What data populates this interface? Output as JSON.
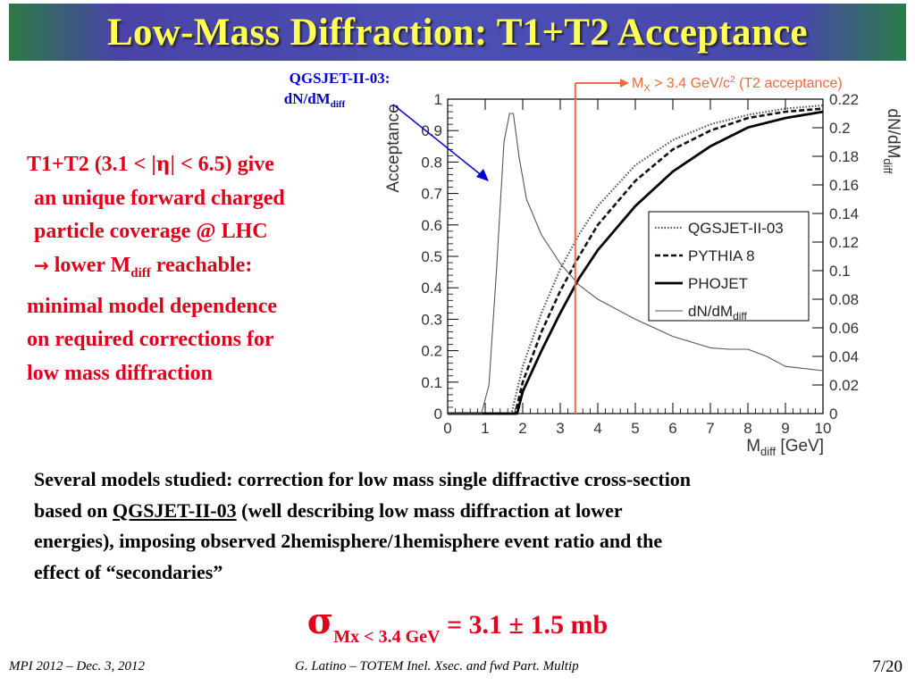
{
  "slide": {
    "title": "Low-Mass Diffraction: T1+T2 Acceptance",
    "left_text": {
      "l1_pre": "T1+T2 (3.1 < |",
      "l1_eta": "η",
      "l1_post": "| < 6.5) give",
      "l2": "an unique forward charged",
      "l3": "particle coverage @ LHC",
      "l4_arrow": "→",
      "l4_pre": " lower M",
      "l4_sub": "diff",
      "l4_post": " reachable:",
      "l5": "minimal model dependence",
      "l6": "on required corrections for",
      "l7": "low mass diffraction"
    },
    "description": {
      "l1": "Several models studied: correction for low mass single diffractive cross-section",
      "l2_pre": "based on ",
      "l2_link": "QGSJET-II-03",
      "l2_post": " (well describing low mass diffraction at lower",
      "l3": "energies), imposing observed 2hemisphere/1hemisphere event ratio and the",
      "l4": "effect of “secondaries”"
    },
    "result": {
      "sigma": "σ",
      "sub": "Mx < 3.4 GeV",
      "value": " = 3.1 ± 1.5 mb"
    },
    "footer": {
      "left": "MPI 2012 – Dec. 3, 2012",
      "middle": "G. Latino – TOTEM  Inel. Xsec. and fwd Part. Multip",
      "page": "7/20"
    }
  },
  "colors": {
    "title_bg": "#4b4fb3",
    "title_text": "#ffff55",
    "accent_red": "#e0001b",
    "annotation_blue": "#0000cc",
    "cut_line": "#f06a3c"
  },
  "chart_data": {
    "type": "line",
    "xlabel_main": "M",
    "xlabel_sub": "diff",
    "xlabel_unit": "[GeV]",
    "ylabel_left": "Acceptance",
    "ylabel_right_main": "dN/dM",
    "ylabel_right_sub": "diff",
    "xlim": [
      0,
      10
    ],
    "ylim_left": [
      0,
      1
    ],
    "ylim_right": [
      0,
      0.22
    ],
    "x_ticks": [
      0,
      1,
      2,
      3,
      4,
      5,
      6,
      7,
      8,
      9,
      10
    ],
    "y_ticks_left": [
      0,
      0.1,
      0.2,
      0.3,
      0.4,
      0.5,
      0.6,
      0.7,
      0.8,
      0.9,
      1
    ],
    "y_ticks_right": [
      0,
      0.02,
      0.04,
      0.06,
      0.08,
      0.1,
      0.12,
      0.14,
      0.16,
      0.18,
      0.2,
      0.22
    ],
    "legend": {
      "position": "center-right",
      "entries": [
        {
          "label": "QGSJET-II-03",
          "style": "dotted"
        },
        {
          "label": "PYTHIA 8",
          "style": "dashed"
        },
        {
          "label": "PHOJET",
          "style": "solid"
        },
        {
          "label_main": "dN/dM",
          "label_sub": "diff",
          "style": "thin"
        }
      ]
    },
    "annotation_left": {
      "line1": "QGSJET-II-03:",
      "line2_main": "dN/dM",
      "line2_sub": "diff"
    },
    "annotation_right": {
      "pre": "M",
      "sub": "X",
      "mid": " > 3.4 GeV/c",
      "sup": "2",
      "post": " (T2 acceptance)"
    },
    "cut_x": 3.4,
    "series": [
      {
        "name": "QGSJET-II-03",
        "axis": "left",
        "style": "dotted",
        "x": [
          0,
          1.7,
          2,
          2.5,
          3,
          3.5,
          4,
          5,
          6,
          7,
          8,
          9,
          10
        ],
        "y": [
          0,
          0,
          0.15,
          0.32,
          0.46,
          0.57,
          0.66,
          0.79,
          0.87,
          0.92,
          0.95,
          0.97,
          0.98
        ]
      },
      {
        "name": "PYTHIA 8",
        "axis": "left",
        "style": "dashed",
        "x": [
          0,
          1.8,
          2,
          2.5,
          3,
          3.5,
          4,
          5,
          6,
          7,
          8,
          9,
          10
        ],
        "y": [
          0,
          0,
          0.1,
          0.26,
          0.39,
          0.5,
          0.6,
          0.74,
          0.84,
          0.9,
          0.94,
          0.96,
          0.97
        ]
      },
      {
        "name": "PHOJET",
        "axis": "left",
        "style": "solid",
        "x": [
          0,
          1.85,
          2,
          2.5,
          3,
          3.5,
          4,
          5,
          6,
          7,
          8,
          9,
          10
        ],
        "y": [
          0,
          0,
          0.07,
          0.2,
          0.32,
          0.43,
          0.52,
          0.66,
          0.77,
          0.85,
          0.91,
          0.94,
          0.96
        ]
      },
      {
        "name": "dN/dMdiff",
        "axis": "right",
        "style": "thin",
        "x": [
          0,
          0.9,
          1.1,
          1.3,
          1.5,
          1.65,
          1.75,
          1.9,
          2.1,
          2.5,
          3,
          3.5,
          4,
          4.5,
          5,
          6,
          7,
          7.5,
          8,
          8.5,
          9,
          10
        ],
        "y": [
          0,
          0,
          0.02,
          0.1,
          0.19,
          0.21,
          0.21,
          0.18,
          0.15,
          0.125,
          0.105,
          0.09,
          0.08,
          0.073,
          0.066,
          0.054,
          0.046,
          0.045,
          0.045,
          0.04,
          0.033,
          0.03
        ]
      }
    ]
  }
}
